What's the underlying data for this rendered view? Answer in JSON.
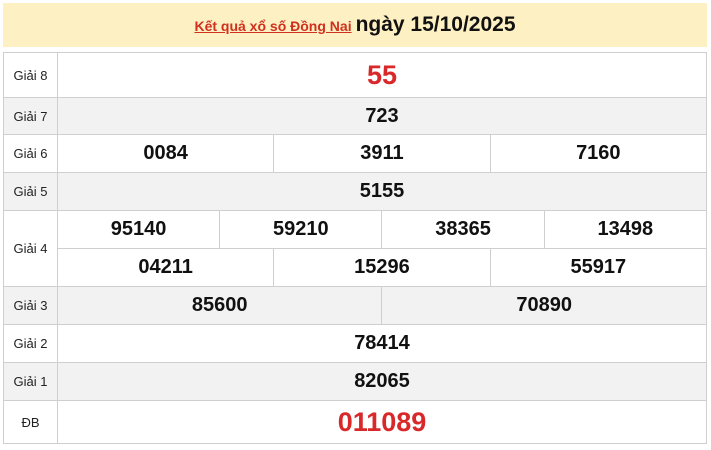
{
  "header": {
    "link_text": "Kết quả xổ số Đồng Nai",
    "date_text": "ngày 15/10/2025"
  },
  "colors": {
    "header_bg": "#fdf0c2",
    "highlight": "#d9282a",
    "alt_row": "#f2f2f2"
  },
  "prizes": {
    "g8": {
      "label": "Giải 8",
      "numbers": [
        "55"
      ]
    },
    "g7": {
      "label": "Giải 7",
      "numbers": [
        "723"
      ]
    },
    "g6": {
      "label": "Giải 6",
      "numbers": [
        "0084",
        "3911",
        "7160"
      ]
    },
    "g5": {
      "label": "Giải 5",
      "numbers": [
        "5155"
      ]
    },
    "g4": {
      "label": "Giải 4",
      "numbers": [
        "95140",
        "59210",
        "38365",
        "13498",
        "04211",
        "15296",
        "55917"
      ]
    },
    "g3": {
      "label": "Giải 3",
      "numbers": [
        "85600",
        "70890"
      ]
    },
    "g2": {
      "label": "Giải 2",
      "numbers": [
        "78414"
      ]
    },
    "g1": {
      "label": "Giải 1",
      "numbers": [
        "82065"
      ]
    },
    "db": {
      "label": "ĐB",
      "numbers": [
        "011089"
      ]
    }
  }
}
